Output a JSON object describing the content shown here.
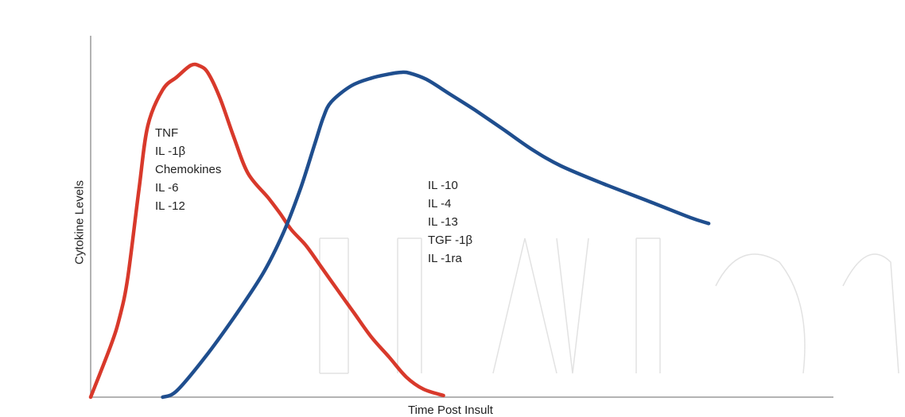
{
  "chart_data": {
    "type": "line",
    "title": "",
    "xlabel": "Time Post Insult",
    "ylabel": "Cytokine Levels",
    "xlim": [
      0,
      100
    ],
    "ylim": [
      0,
      100
    ],
    "grid": false,
    "series": [
      {
        "color": "#d8392b",
        "points": [
          [
            0,
            0
          ],
          [
            2.7,
            15.3
          ],
          [
            3.9,
            23.8
          ],
          [
            5.0,
            35.7
          ],
          [
            6.5,
            61.9
          ],
          [
            7.7,
            81.0
          ],
          [
            9.7,
            91.7
          ],
          [
            11.6,
            95.5
          ],
          [
            13.5,
            99.0
          ],
          [
            14.7,
            98.8
          ],
          [
            15.8,
            96.7
          ],
          [
            17.4,
            89.3
          ],
          [
            19.3,
            77.4
          ],
          [
            21.2,
            66.7
          ],
          [
            23.9,
            59.5
          ],
          [
            25.5,
            54.8
          ],
          [
            27.0,
            50.0
          ],
          [
            29.0,
            45.2
          ],
          [
            30.9,
            39.3
          ],
          [
            33.2,
            32.1
          ],
          [
            35.5,
            25.0
          ],
          [
            37.8,
            17.9
          ],
          [
            40.2,
            11.9
          ],
          [
            42.5,
            6.0
          ],
          [
            44.8,
            2.4
          ],
          [
            47.5,
            0.5
          ]
        ]
      },
      {
        "color": "#1f4e8e",
        "points": [
          [
            9.7,
            0
          ],
          [
            11.6,
            1.9
          ],
          [
            15.4,
            11.9
          ],
          [
            19.3,
            23.8
          ],
          [
            23.2,
            36.9
          ],
          [
            25.9,
            48.8
          ],
          [
            28.2,
            61.9
          ],
          [
            30.1,
            75.0
          ],
          [
            31.3,
            83.3
          ],
          [
            32.4,
            88.1
          ],
          [
            35.1,
            92.9
          ],
          [
            37.8,
            95.2
          ],
          [
            40.2,
            96.4
          ],
          [
            41.7,
            96.9
          ],
          [
            42.9,
            96.7
          ],
          [
            45.2,
            94.8
          ],
          [
            48.3,
            90.5
          ],
          [
            51.7,
            85.7
          ],
          [
            55.6,
            79.8
          ],
          [
            59.5,
            73.8
          ],
          [
            63.3,
            69.0
          ],
          [
            69.1,
            63.6
          ],
          [
            75.3,
            58.3
          ],
          [
            80.7,
            53.6
          ],
          [
            83.2,
            51.8
          ]
        ]
      }
    ],
    "annotations": [
      [
        "TNF",
        "IL -1β",
        "Chemokines",
        "IL -6",
        "IL -12"
      ],
      [
        "IL -10",
        "IL -4",
        "IL -13",
        "TGF -1β",
        "IL -1ra"
      ]
    ]
  }
}
